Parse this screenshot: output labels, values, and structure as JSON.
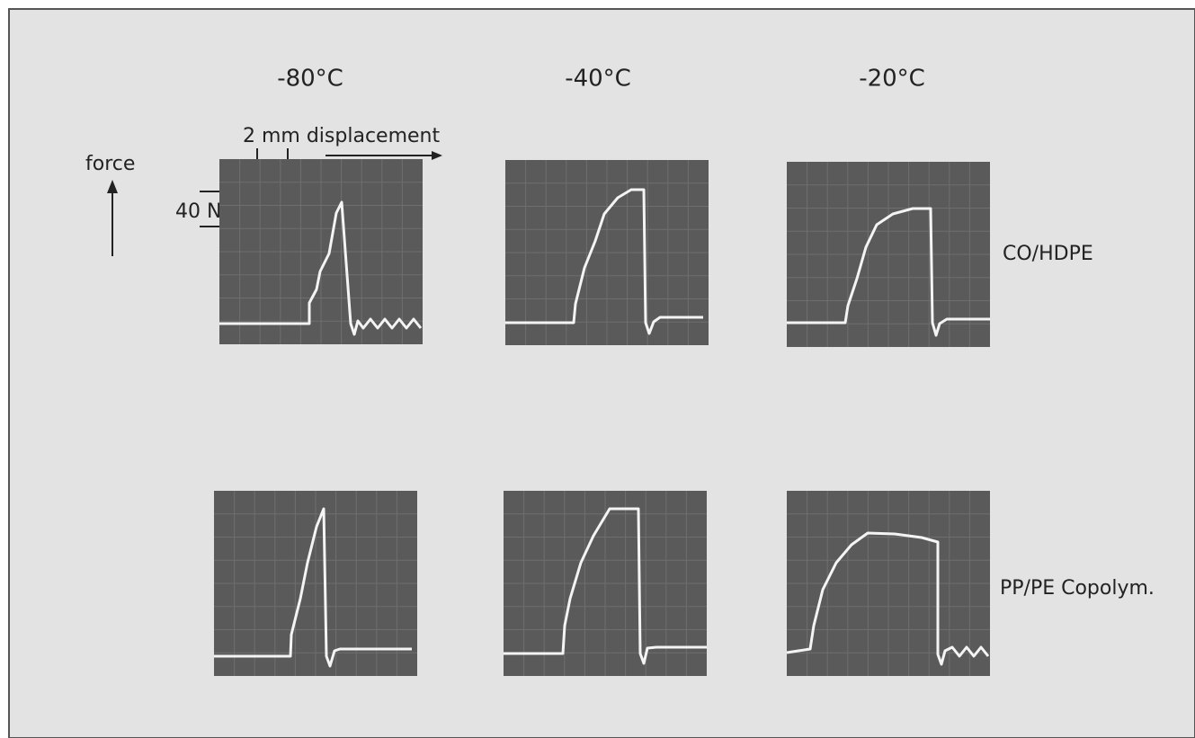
{
  "columns": [
    "-80°C",
    "-40°C",
    "-20°C"
  ],
  "rows": [
    "CO/HDPE",
    "PP/PE Copolym."
  ],
  "axes": {
    "force": "force",
    "displacement": "2 mm displacement",
    "force_scale": "40 N"
  }
}
